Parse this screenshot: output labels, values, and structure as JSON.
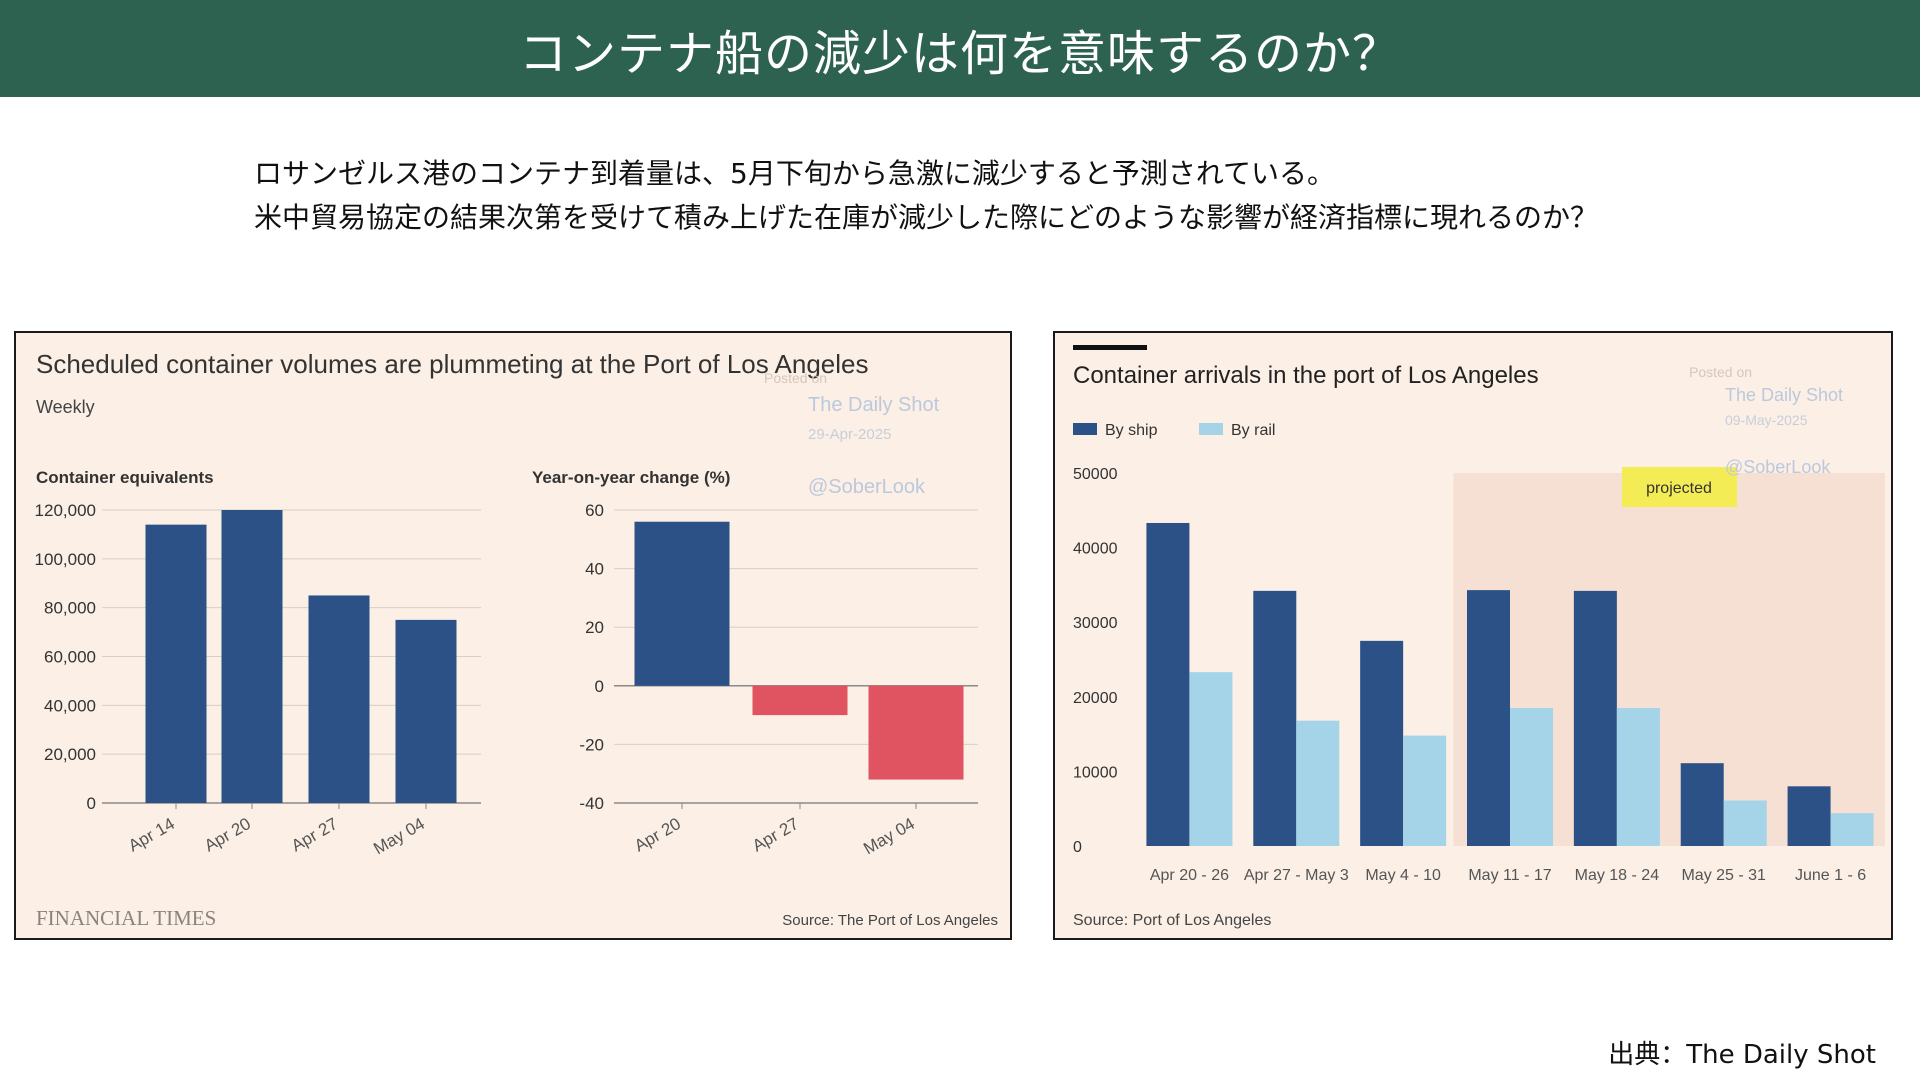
{
  "slide": {
    "title": "コンテナ船の減少は何を意味するのか？",
    "intro_line1": "ロサンゼルス港のコンテナ到着量は、5月下旬から急激に減少すると予測されている。",
    "intro_line2": "米中貿易協定の結果次第を受けて積み上げた在庫が減少した際にどのような影響が経済指標に現れるのか？",
    "credit": "出典：The Daily Shot"
  },
  "colors": {
    "title_bg": "#2e6250",
    "navy": "#2c5187",
    "red": "#e05360",
    "light_blue": "#a5d3e8",
    "panel_bg": "#fbefe6",
    "projected_bg": "#f6e0d4",
    "projected_label_bg": "#f4ec55"
  },
  "left_panel": {
    "title": "Scheduled container volumes are plummeting at the Port of Los Angeles",
    "subtitle": "Weekly",
    "watermark": {
      "posted_on": "Posted on",
      "site": "The Daily Shot",
      "date": "29-Apr-2025",
      "handle": "@SoberLook"
    },
    "brand": "FINANCIAL TIMES",
    "source": "Source: The Port of Los Angeles"
  },
  "right_panel": {
    "watermark": {
      "posted_on": "Posted on",
      "site": "The Daily Shot",
      "date": "09-May-2025",
      "handle": "@SoberLook"
    },
    "source": "Source: Port of Los Angeles"
  },
  "chart_data": [
    {
      "type": "bar",
      "title": "Scheduled container volumes are plummeting at the Port of Los Angeles",
      "subtitle": "Weekly",
      "ylabel": "Container equivalents",
      "categories": [
        "Apr 14",
        "Apr 20",
        "Apr 27",
        "May 04"
      ],
      "values": [
        114000,
        120000,
        85000,
        75000
      ],
      "ylim": [
        0,
        120000
      ],
      "yticks": [
        "120,000",
        "100,000",
        "80,000",
        "60,000",
        "40,000",
        "20,000",
        "0"
      ],
      "ytick_values": [
        120000,
        100000,
        80000,
        60000,
        40000,
        20000,
        0
      ],
      "grid": true
    },
    {
      "type": "bar",
      "ylabel": "Year-on-year change (%)",
      "categories": [
        "Apr 20",
        "Apr 27",
        "May 04"
      ],
      "values": [
        56,
        -10,
        -32
      ],
      "ylim": [
        -40,
        60
      ],
      "yticks": [
        "60",
        "40",
        "20",
        "0",
        "-20",
        "-40"
      ],
      "ytick_values": [
        60,
        40,
        20,
        0,
        -20,
        -40
      ],
      "grid": true
    },
    {
      "type": "bar",
      "title": "Container arrivals in the port of Los Angeles",
      "categories": [
        "Apr 20 - 26",
        "Apr 27 - May 3",
        "May 4 - 10",
        "May 11 - 17",
        "May 18 - 24",
        "May 25 - 31",
        "June 1 - 6"
      ],
      "series": [
        {
          "name": "By ship",
          "values": [
            43300,
            34200,
            27500,
            34300,
            34200,
            11100,
            8000
          ]
        },
        {
          "name": "By rail",
          "values": [
            23300,
            16800,
            14800,
            18500,
            18500,
            6100,
            4400
          ]
        }
      ],
      "ylim": [
        0,
        50000
      ],
      "yticks": [
        "50000",
        "40000",
        "30000",
        "20000",
        "10000",
        "0"
      ],
      "ytick_values": [
        50000,
        40000,
        30000,
        20000,
        10000,
        0
      ],
      "projected_label": "projected",
      "projected_from": "May 11 - 17",
      "legend": "top-left",
      "grid": false
    }
  ]
}
